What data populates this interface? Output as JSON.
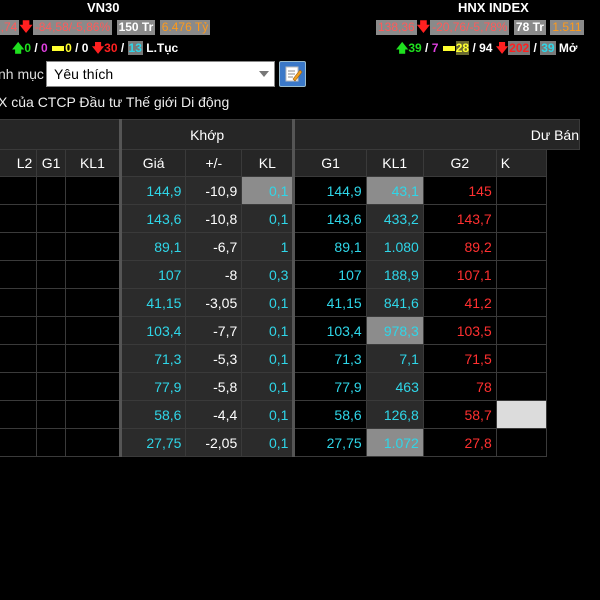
{
  "indices": {
    "vn30": {
      "title": "VN30",
      "value": "9,74",
      "change": "-84,58/-5,86%",
      "volume": "150 Tr",
      "turnover": "6.476 Tỷ",
      "up": "0",
      "ceiling": "0",
      "unchanged": "0",
      "unchanged_sep": "0",
      "down": "30",
      "floor": "13",
      "status": "L.Tục"
    },
    "hnx": {
      "title": "HNX INDEX",
      "value": "138,36",
      "change": "-20,76/-5,78%",
      "volume": "78 Tr",
      "turnover": "1.511",
      "up": "39",
      "ceiling": "7",
      "unchanged": "28",
      "unchanged_sep": "94",
      "down": "202",
      "floor": "39",
      "status": "Mở"
    }
  },
  "filter": {
    "label": "nh mục",
    "selected": "Yêu thích"
  },
  "company_line": "X của CTCP Đầu tư Thế giới Di động",
  "table": {
    "groups": {
      "left": "a",
      "match": "Khớp",
      "ask": "Dư Bán"
    },
    "columns": [
      "L2",
      "G1",
      "KL1",
      "Giá",
      "+/-",
      "KL",
      "G1",
      "KL1",
      "G2",
      "K"
    ],
    "rows": [
      {
        "gia": "144,9",
        "chg": "-10,9",
        "kl": "0,1",
        "g1": "144,9",
        "kl1": "43,1",
        "g2": "145"
      },
      {
        "gia": "143,6",
        "chg": "-10,8",
        "kl": "0,1",
        "g1": "143,6",
        "kl1": "433,2",
        "g2": "143,7"
      },
      {
        "gia": "89,1",
        "chg": "-6,7",
        "kl": "1",
        "g1": "89,1",
        "kl1": "1.080",
        "g2": "89,2"
      },
      {
        "gia": "107",
        "chg": "-8",
        "kl": "0,3",
        "g1": "107",
        "kl1": "188,9",
        "g2": "107,1"
      },
      {
        "gia": "41,15",
        "chg": "-3,05",
        "kl": "0,1",
        "g1": "41,15",
        "kl1": "841,6",
        "g2": "41,2"
      },
      {
        "gia": "103,4",
        "chg": "-7,7",
        "kl": "0,1",
        "g1": "103,4",
        "kl1": "978,3",
        "g2": "103,5"
      },
      {
        "gia": "71,3",
        "chg": "-5,3",
        "kl": "0,1",
        "g1": "71,3",
        "kl1": "7,1",
        "g2": "71,5"
      },
      {
        "gia": "77,9",
        "chg": "-5,8",
        "kl": "0,1",
        "g1": "77,9",
        "kl1": "463",
        "g2": "78"
      },
      {
        "gia": "58,6",
        "chg": "-4,4",
        "kl": "0,1",
        "g1": "58,6",
        "kl1": "126,8",
        "g2": "58,7"
      },
      {
        "gia": "27,75",
        "chg": "-2,05",
        "kl": "0,1",
        "g1": "27,75",
        "kl1": "1.072",
        "g2": "27,8"
      }
    ]
  }
}
